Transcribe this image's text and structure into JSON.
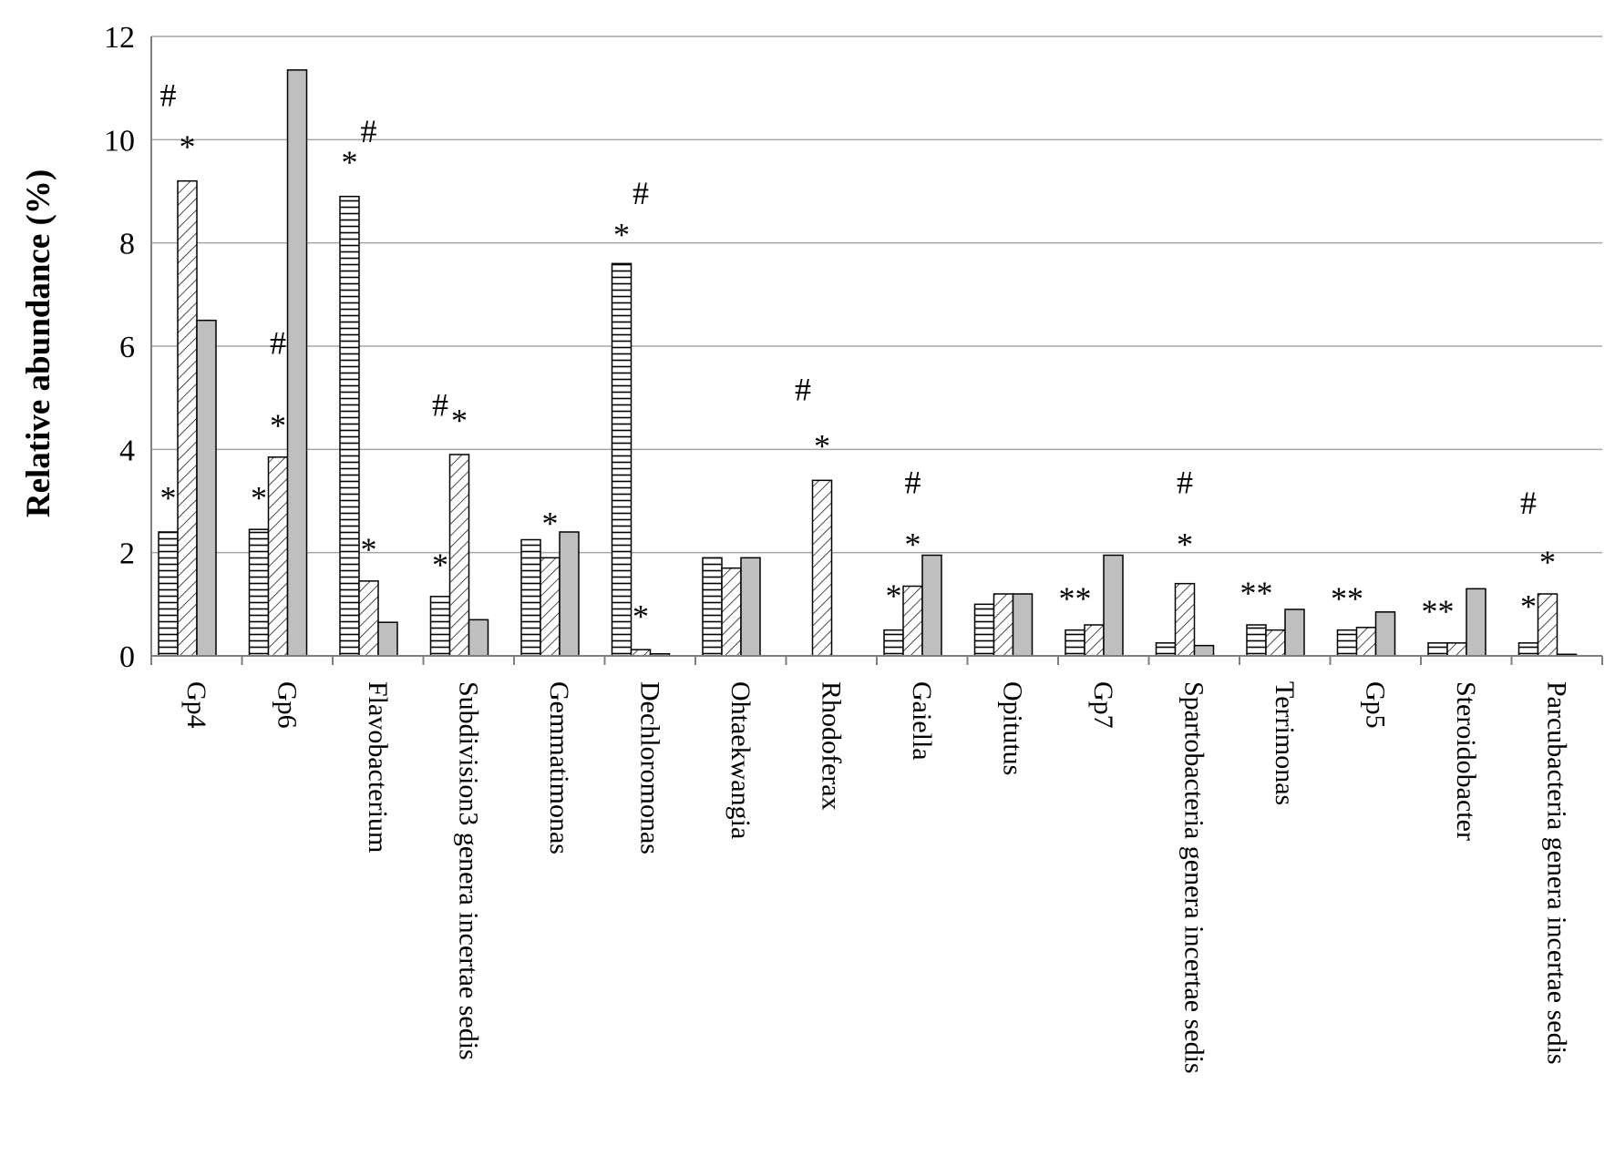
{
  "chart_data": {
    "type": "bar",
    "ylabel": "Relative abundance (%)",
    "ylim": [
      0,
      12
    ],
    "yticks": [
      0,
      2,
      4,
      6,
      8,
      10,
      12
    ],
    "grid": "horizontal",
    "legend": "none",
    "categories": [
      "Gp4",
      "Gp6",
      "Flavobacterium",
      "Subdivision3 genera incertae sedis",
      "Gemmatimonas",
      "Dechloromonas",
      "Ohtaekwangia",
      "Rhodoferax",
      "Gaiella",
      "Opitutus",
      "Gp7",
      "Spartobacteria genera incertae sedis",
      "Terrimonas",
      "Gp5",
      "Steroidobacter",
      "Parcubacteria genera incertae sedis"
    ],
    "series": [
      {
        "pattern": "horizontal-lines",
        "fill": "#ffffff",
        "values": [
          2.4,
          2.45,
          8.9,
          1.15,
          2.25,
          7.6,
          1.9,
          0.0,
          0.5,
          1.0,
          0.5,
          0.25,
          0.6,
          0.5,
          0.25,
          0.25
        ]
      },
      {
        "pattern": "diagonal-lines",
        "fill": "#ffffff",
        "values": [
          9.2,
          3.85,
          1.45,
          3.9,
          1.9,
          0.12,
          1.7,
          3.4,
          1.35,
          1.2,
          0.6,
          1.4,
          0.5,
          0.55,
          0.25,
          1.2
        ]
      },
      {
        "pattern": "solid",
        "fill": "#bfbfbf",
        "values": [
          6.5,
          11.35,
          0.65,
          0.7,
          2.4,
          0.04,
          1.9,
          0.0,
          1.95,
          1.2,
          1.95,
          0.2,
          0.9,
          0.85,
          1.3,
          0.03
        ]
      }
    ],
    "annotations": [
      {
        "text": "#",
        "category": "Gp4",
        "series": 0,
        "y": 10.9
      },
      {
        "text": "*",
        "category": "Gp4",
        "series": 0,
        "y": 3.1
      },
      {
        "text": "*",
        "category": "Gp4",
        "series": 1,
        "y": 9.9
      },
      {
        "text": "#",
        "category": "Gp6",
        "series": 1,
        "y": 6.1
      },
      {
        "text": "*",
        "category": "Gp6",
        "series": 0,
        "y": 3.1
      },
      {
        "text": "*",
        "category": "Gp6",
        "series": 1,
        "y": 4.5
      },
      {
        "text": "*",
        "category": "Flavobacterium",
        "series": 0,
        "y": 9.6
      },
      {
        "text": "#",
        "category": "Flavobacterium",
        "series": 1,
        "y": 10.2
      },
      {
        "text": "*",
        "category": "Flavobacterium",
        "series": 1,
        "y": 2.1
      },
      {
        "text": "#",
        "category": "Subdivision3 genera incertae sedis",
        "series": 0,
        "y": 4.9
      },
      {
        "text": "*",
        "category": "Subdivision3 genera incertae sedis",
        "series": 1,
        "y": 4.6
      },
      {
        "text": "*",
        "category": "Subdivision3 genera incertae sedis",
        "series": 0,
        "y": 1.8
      },
      {
        "text": "*",
        "category": "Gemmatimonas",
        "series": 1,
        "y": 2.6
      },
      {
        "text": "*",
        "category": "Dechloromonas",
        "series": 0,
        "y": 8.2
      },
      {
        "text": "#",
        "category": "Dechloromonas",
        "series": 1,
        "y": 9.0
      },
      {
        "text": "*",
        "category": "Dechloromonas",
        "series": 1,
        "y": 0.8
      },
      {
        "text": "#",
        "category": "Rhodoferax",
        "series": 0,
        "y": 5.2
      },
      {
        "text": "*",
        "category": "Rhodoferax",
        "series": 1,
        "y": 4.1
      },
      {
        "text": "#",
        "category": "Gaiella",
        "series": 1,
        "y": 3.4
      },
      {
        "text": "*",
        "category": "Gaiella",
        "series": 0,
        "y": 1.2
      },
      {
        "text": "*",
        "category": "Gaiella",
        "series": 1,
        "y": 2.2
      },
      {
        "text": "**",
        "category": "Gp7",
        "series": 0,
        "y": 1.15
      },
      {
        "text": "#",
        "category": "Spartobacteria genera incertae sedis",
        "series": 1,
        "y": 3.4
      },
      {
        "text": "*",
        "category": "Spartobacteria genera incertae sedis",
        "series": 1,
        "y": 2.2
      },
      {
        "text": "**",
        "category": "Terrimonas",
        "series": 0,
        "y": 1.25
      },
      {
        "text": "**",
        "category": "Gp5",
        "series": 0,
        "y": 1.15
      },
      {
        "text": "**",
        "category": "Steroidobacter",
        "series": 0,
        "y": 0.9
      },
      {
        "text": "#",
        "category": "Parcubacteria genera incertae sedis",
        "series": 0,
        "y": 3.0
      },
      {
        "text": "*",
        "category": "Parcubacteria genera incertae sedis",
        "series": 1,
        "y": 1.85
      },
      {
        "text": "*",
        "category": "Parcubacteria genera incertae sedis",
        "series": 0,
        "y": 1.0
      }
    ]
  }
}
